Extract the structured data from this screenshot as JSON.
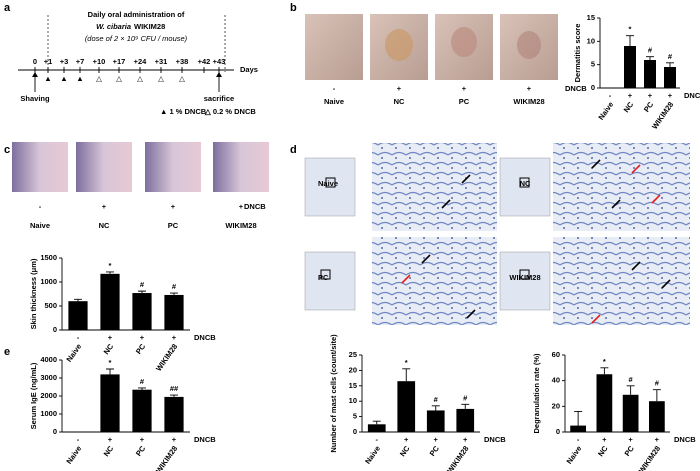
{
  "figure": {
    "panel_labels": [
      "a",
      "b",
      "c",
      "d",
      "e"
    ],
    "timeline": {
      "title": "Daily oral administration of",
      "strain_species": "W. cibaria",
      "strain": "WIKIM28",
      "dose": "(dose of 2 × 10⁹ CFU / mouse)",
      "days": [
        "0",
        "+1",
        "+3",
        "+7",
        "+10",
        "+17",
        "+24",
        "+31",
        "+38",
        "+42",
        "+43"
      ],
      "days_unit": "Days",
      "markers": [
        "▲",
        "▲",
        "▲",
        "△",
        "△",
        "△",
        "△",
        "△"
      ],
      "events": [
        "Shaving",
        "sacrifice"
      ],
      "legend": [
        "▲ 1 % DNCB",
        "△ 0.2 % DNCB"
      ]
    },
    "photos_b": {
      "groups": [
        "Naive",
        "NC",
        "PC",
        "WIKIM28"
      ],
      "treatment": [
        "-",
        "+",
        "+",
        "+"
      ],
      "treatment_label": "DNCB"
    },
    "histology_c": {
      "groups": [
        "Naive",
        "NC",
        "PC",
        "WIKIM28"
      ],
      "treatment": [
        "-",
        "+",
        "+",
        "+"
      ],
      "treatment_label": "DNCB"
    },
    "histology_d": {
      "groups": [
        "Naive",
        "NC",
        "PC",
        "WIKIM28"
      ]
    }
  },
  "chart_data": [
    {
      "type": "bar",
      "y_label": "Dermatitis score",
      "categories": [
        "Naive",
        "NC",
        "PC",
        "WIKIM28"
      ],
      "treatment": [
        "-",
        "+",
        "+",
        "+"
      ],
      "treatment_label": "DNCB",
      "values": [
        0,
        9,
        6,
        4.5
      ],
      "errors": [
        0,
        2.2,
        0.7,
        0.9
      ],
      "annotations": [
        "*",
        "#",
        "#"
      ],
      "annotated": [
        1,
        2,
        3
      ],
      "color": "#000000",
      "ylim": [
        0,
        15
      ],
      "yticks": [
        0,
        5,
        10,
        15
      ]
    },
    {
      "type": "bar",
      "y_label": "Skin thickness (μm)",
      "categories": [
        "Naive",
        "NC",
        "PC",
        "WIKIM28"
      ],
      "treatment": [
        "-",
        "+",
        "+",
        "+"
      ],
      "treatment_label": "DNCB",
      "values": [
        600,
        1170,
        770,
        730
      ],
      "errors": [
        40,
        40,
        40,
        40
      ],
      "annotations": [
        "*",
        "#",
        "#"
      ],
      "annotated": [
        1,
        2,
        3
      ],
      "color": "#000000",
      "ylim": [
        0,
        1500
      ],
      "yticks": [
        0,
        500,
        1000,
        1500
      ]
    },
    {
      "type": "bar",
      "y_label": "Serum IgE (ng/mL)",
      "categories": [
        "Naive",
        "NC",
        "PC",
        "WIKIM28"
      ],
      "treatment": [
        "-",
        "+",
        "+",
        "+"
      ],
      "treatment_label": "DNCB",
      "values": [
        0,
        3200,
        2350,
        1950
      ],
      "errors": [
        0,
        300,
        100,
        100
      ],
      "annotations": [
        "*",
        "#",
        "##"
      ],
      "annotated": [
        1,
        2,
        3
      ],
      "color": "#000000",
      "ylim": [
        0,
        4000
      ],
      "yticks": [
        0,
        1000,
        2000,
        3000,
        4000
      ]
    },
    {
      "type": "bar",
      "y_label": "Number of mast cells (count/site)",
      "categories": [
        "Naive",
        "NC",
        "PC",
        "WIKIM28"
      ],
      "treatment": [
        "-",
        "+",
        "+",
        "+"
      ],
      "treatment_label": "DNCB",
      "values": [
        2.5,
        16.5,
        7,
        7.5
      ],
      "errors": [
        1,
        4,
        1.5,
        1.5
      ],
      "annotations": [
        "*",
        "#",
        "#"
      ],
      "annotated": [
        1,
        2,
        3
      ],
      "color": "#000000",
      "ylim": [
        0,
        25
      ],
      "yticks": [
        0,
        5,
        10,
        15,
        20,
        25
      ]
    },
    {
      "type": "bar",
      "y_label": "Degranulation rate (%)",
      "categories": [
        "Naive",
        "NC",
        "PC",
        "WIKIM28"
      ],
      "treatment": [
        "-",
        "+",
        "+",
        "+"
      ],
      "treatment_label": "DNCB",
      "values": [
        5,
        45,
        29,
        24
      ],
      "errors": [
        11,
        5,
        7,
        9
      ],
      "annotations": [
        "*",
        "#",
        "#"
      ],
      "annotated": [
        1,
        2,
        3
      ],
      "color": "#000000",
      "ylim": [
        0,
        60
      ],
      "yticks": [
        0,
        20,
        40,
        60
      ]
    }
  ]
}
